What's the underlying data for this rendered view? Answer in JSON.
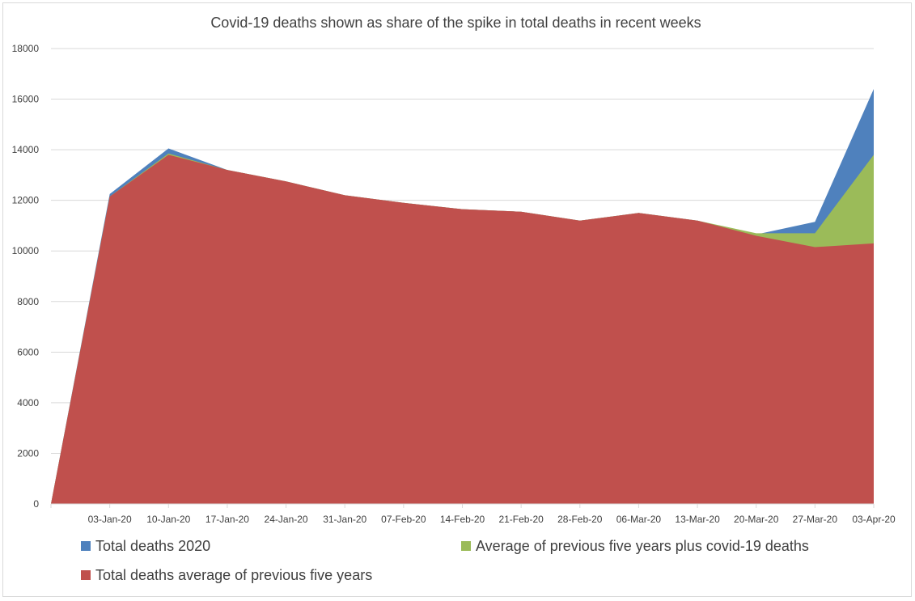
{
  "chart_data": {
    "type": "area",
    "title": "Covid-19 deaths shown as share of the spike in total deaths in recent weeks",
    "categories": [
      "",
      "03-Jan-20",
      "10-Jan-20",
      "17-Jan-20",
      "24-Jan-20",
      "31-Jan-20",
      "07-Feb-20",
      "14-Feb-20",
      "21-Feb-20",
      "28-Feb-20",
      "06-Mar-20",
      "13-Mar-20",
      "20-Mar-20",
      "27-Mar-20",
      "03-Apr-20"
    ],
    "series": [
      {
        "name": "Total deaths 2020",
        "color": "#4f81bd",
        "values": [
          0,
          12250,
          14050,
          13200,
          12750,
          12200,
          11900,
          11650,
          11550,
          11200,
          11500,
          11200,
          10650,
          11150,
          16400
        ]
      },
      {
        "name": "Average of previous five years plus covid-19 deaths",
        "color": "#9bbb59",
        "values": [
          0,
          12150,
          13850,
          13200,
          12750,
          12200,
          11900,
          11650,
          11550,
          11200,
          11500,
          11200,
          10700,
          10700,
          13800
        ]
      },
      {
        "name": "Total deaths average of previous five years",
        "color": "#c0504d",
        "values": [
          0,
          12150,
          13800,
          13200,
          12750,
          12200,
          11900,
          11650,
          11550,
          11200,
          11500,
          11200,
          10600,
          10150,
          10300
        ]
      }
    ],
    "yticks": [
      0,
      2000,
      4000,
      6000,
      8000,
      10000,
      12000,
      14000,
      16000,
      18000
    ],
    "ylim": [
      0,
      18000
    ],
    "grid": true,
    "legend_position": "bottom"
  }
}
